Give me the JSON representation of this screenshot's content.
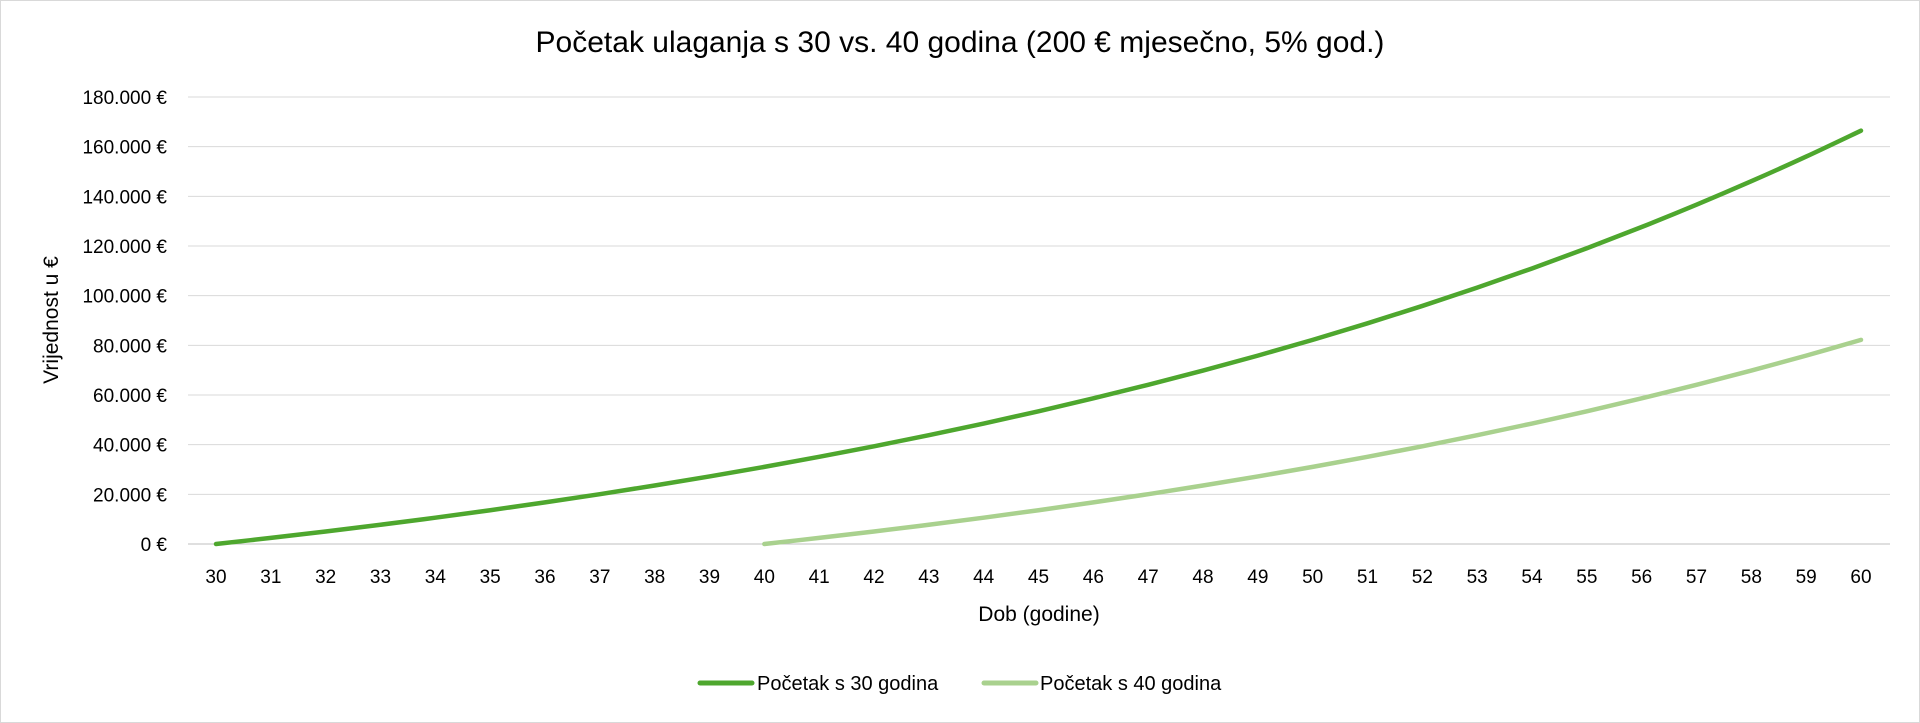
{
  "chart_data": {
    "type": "line",
    "title": "Početak ulaganja s 30 vs. 40 godina (200 € mjesečno, 5% god.)",
    "xlabel": "Dob (godine)",
    "ylabel": "Vrijednost u €",
    "x": [
      30,
      31,
      32,
      33,
      34,
      35,
      36,
      37,
      38,
      39,
      40,
      41,
      42,
      43,
      44,
      45,
      46,
      47,
      48,
      49,
      50,
      51,
      52,
      53,
      54,
      55,
      56,
      57,
      58,
      59,
      60
    ],
    "ylim": [
      0,
      180000
    ],
    "yticks": [
      0,
      20000,
      40000,
      60000,
      80000,
      100000,
      120000,
      140000,
      160000,
      180000
    ],
    "ytick_labels": [
      "0 €",
      "20.000 €",
      "40.000 €",
      "60.000 €",
      "80.000 €",
      "100.000 €",
      "120.000 €",
      "140.000 €",
      "160.000 €",
      "180.000 €"
    ],
    "grid": true,
    "legend_position": "bottom",
    "series": [
      {
        "name": "Početak s 30 godina",
        "color": "#4ea72e",
        "values": [
          0,
          2456,
          5037,
          7751,
          10604,
          13603,
          16754,
          20066,
          23548,
          27208,
          31056,
          35100,
          39350,
          43819,
          48516,
          53453,
          58643,
          64099,
          69834,
          75862,
          82198,
          88860,
          95862,
          103222,
          110959,
          119093,
          127643,
          136630,
          146077,
          156007,
          166445
        ]
      },
      {
        "name": "Početak s 40 godina",
        "color": "#a9d18e",
        "values": [
          null,
          null,
          null,
          null,
          null,
          null,
          null,
          null,
          null,
          null,
          0,
          2456,
          5037,
          7751,
          10604,
          13603,
          16754,
          20066,
          23548,
          27208,
          31056,
          35100,
          39350,
          43819,
          48516,
          53453,
          58643,
          64099,
          69834,
          75862,
          82198
        ]
      }
    ]
  }
}
